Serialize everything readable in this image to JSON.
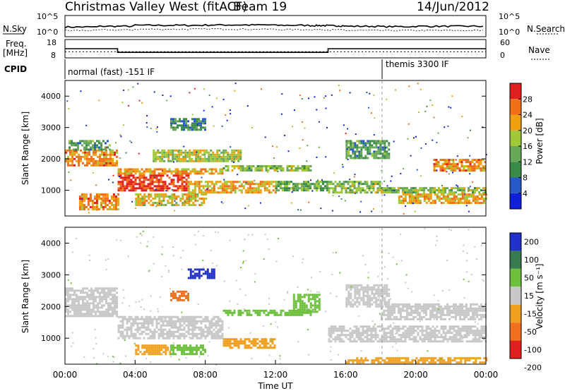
{
  "header": {
    "title": "Christmas Valley West (fitACF)",
    "beam": "Beam 19",
    "date": "14/Jun/2012"
  },
  "noise_panel": {
    "left_label": "N.Sky",
    "right_label": "N.Search",
    "left_ticks": [
      "10^5",
      "10^0"
    ],
    "right_ticks": [
      "10^5",
      "10^0"
    ]
  },
  "freq_panel": {
    "left_label_1": "Freq.",
    "left_label_2": "[MHz]",
    "right_label": "Nave",
    "left_ticks": [
      "18",
      "8"
    ],
    "right_ticks": [
      "60",
      "0"
    ]
  },
  "cpid_panel": {
    "label": "CPID",
    "segments": [
      {
        "start_hour": 0,
        "text": "normal (fast) -151 IF"
      },
      {
        "start_hour": 18,
        "text": "themis 3300 IF"
      }
    ]
  },
  "chart_data": [
    {
      "type": "line",
      "title": "N.Sky / N.Search",
      "x_range": [
        "00:00",
        "24:00"
      ],
      "y_scale": "log",
      "ylim": [
        1,
        100000
      ],
      "series": [
        {
          "values_note": "",
          "x": [
            0,
            2,
            4,
            6,
            8,
            10,
            12,
            14,
            15,
            16,
            18,
            20,
            22,
            24
          ],
          "y": [
            200,
            300,
            500,
            500,
            600,
            600,
            500,
            450,
            400,
            300,
            250,
            300,
            300,
            300
          ]
        },
        {
          "x": [
            0,
            2,
            4,
            6,
            8,
            10,
            12,
            14,
            15,
            16,
            18,
            20,
            22,
            24
          ],
          "y": [
            30,
            40,
            60,
            60,
            70,
            60,
            50,
            50,
            40,
            30,
            30,
            30,
            30,
            30
          ]
        }
      ]
    },
    {
      "type": "line",
      "x_range": [
        "00:00",
        "24:00"
      ],
      "ylim": [
        8,
        18
      ],
      "y2lim": [
        0,
        60
      ],
      "series": [
        {
          "x": [
            0,
            3,
            3,
            15,
            15,
            24
          ],
          "y": [
            13,
            13,
            11,
            11,
            13,
            13
          ]
        },
        {
          "x": [
            0,
            24
          ],
          "y2": [
            20,
            20
          ]
        }
      ]
    },
    {
      "type": "heatmap",
      "ylabel": "Slant Range [km]",
      "colorbar_label": "Power [dB]",
      "ylim": [
        180,
        4500
      ],
      "yticks": [
        1000,
        2000,
        3000,
        4000
      ],
      "colorbar_ticks": [
        4,
        8,
        12,
        16,
        20,
        24,
        28
      ],
      "colorbar_range": [
        0,
        32
      ],
      "colors": [
        "#1020d8",
        "#2858c8",
        "#3a8a4a",
        "#68a858",
        "#a0c838",
        "#f0a010",
        "#f07018",
        "#e02020"
      ],
      "bands": [
        {
          "t0": 0,
          "t1": 3,
          "r0": 1800,
          "r1": 2300,
          "level": 24
        },
        {
          "t0": 0.2,
          "t1": 2.5,
          "r0": 2300,
          "r1": 2600,
          "level": 12
        },
        {
          "t0": 0.8,
          "t1": 3,
          "r0": 400,
          "r1": 900,
          "level": 24
        },
        {
          "t0": 3,
          "t1": 7,
          "r0": 1000,
          "r1": 1500,
          "level": 29
        },
        {
          "t0": 3,
          "t1": 9,
          "r0": 1500,
          "r1": 1700,
          "level": 22
        },
        {
          "t0": 4,
          "t1": 8,
          "r0": 500,
          "r1": 900,
          "level": 20
        },
        {
          "t0": 5,
          "t1": 10,
          "r0": 1900,
          "r1": 2300,
          "level": 18
        },
        {
          "t0": 6,
          "t1": 8,
          "r0": 2900,
          "r1": 3300,
          "level": 10
        },
        {
          "t0": 7,
          "t1": 12,
          "r0": 900,
          "r1": 1300,
          "level": 22
        },
        {
          "t0": 9,
          "t1": 14,
          "r0": 1600,
          "r1": 1800,
          "level": 16
        },
        {
          "t0": 12,
          "t1": 15,
          "r0": 1000,
          "r1": 1300,
          "level": 14
        },
        {
          "t0": 15,
          "t1": 18,
          "r0": 900,
          "r1": 1300,
          "level": 16
        },
        {
          "t0": 16,
          "t1": 18.5,
          "r0": 2000,
          "r1": 2600,
          "level": 12
        },
        {
          "t0": 18,
          "t1": 24,
          "r0": 900,
          "r1": 1100,
          "level": 16
        },
        {
          "t0": 21,
          "t1": 24,
          "r0": 1600,
          "r1": 2000,
          "level": 24
        },
        {
          "t0": 19,
          "t1": 24,
          "r0": 600,
          "r1": 900,
          "level": 22
        }
      ]
    },
    {
      "type": "heatmap",
      "xlabel": "Time UT",
      "ylabel": "Slant Range [km]",
      "colorbar_label": "Velocity [m s⁻¹]",
      "ylim": [
        180,
        4500
      ],
      "yticks": [
        1000,
        2000,
        3000,
        4000
      ],
      "xticks": [
        "00:00",
        "04:00",
        "08:00",
        "12:00",
        "16:00",
        "20:00",
        "00:00"
      ],
      "colorbar_ticks": [
        200,
        100,
        50,
        15,
        -15,
        -50,
        -100,
        -200
      ],
      "colors": [
        "#2030c8",
        "#3a7a50",
        "#70c040",
        "#c8c8c8",
        "#f0a020",
        "#f07020",
        "#e02020"
      ],
      "bands": [
        {
          "t0": 0,
          "t1": 3,
          "r0": 1700,
          "r1": 2600,
          "level": 0
        },
        {
          "t0": 3,
          "t1": 9,
          "r0": 1000,
          "r1": 1700,
          "level": 0
        },
        {
          "t0": 4,
          "t1": 6,
          "r0": 500,
          "r1": 800,
          "level": -30
        },
        {
          "t0": 6,
          "t1": 8,
          "r0": 500,
          "r1": 800,
          "level": 60
        },
        {
          "t0": 7,
          "t1": 8.5,
          "r0": 2900,
          "r1": 3200,
          "level": 150
        },
        {
          "t0": 6,
          "t1": 7,
          "r0": 2200,
          "r1": 2500,
          "level": -80
        },
        {
          "t0": 9,
          "t1": 12,
          "r0": 700,
          "r1": 1000,
          "level": -40
        },
        {
          "t0": 9,
          "t1": 14,
          "r0": 1700,
          "r1": 1900,
          "level": 50
        },
        {
          "t0": 13,
          "t1": 14.5,
          "r0": 1800,
          "r1": 2400,
          "level": 40
        },
        {
          "t0": 15,
          "t1": 24,
          "r0": 900,
          "r1": 1400,
          "level": 0
        },
        {
          "t0": 18,
          "t1": 24,
          "r0": 1600,
          "r1": 2100,
          "level": 0
        },
        {
          "t0": 16,
          "t1": 18.5,
          "r0": 2000,
          "r1": 2700,
          "level": 0
        },
        {
          "t0": 16,
          "t1": 24,
          "r0": 200,
          "r1": 400,
          "level": -30
        }
      ]
    }
  ]
}
